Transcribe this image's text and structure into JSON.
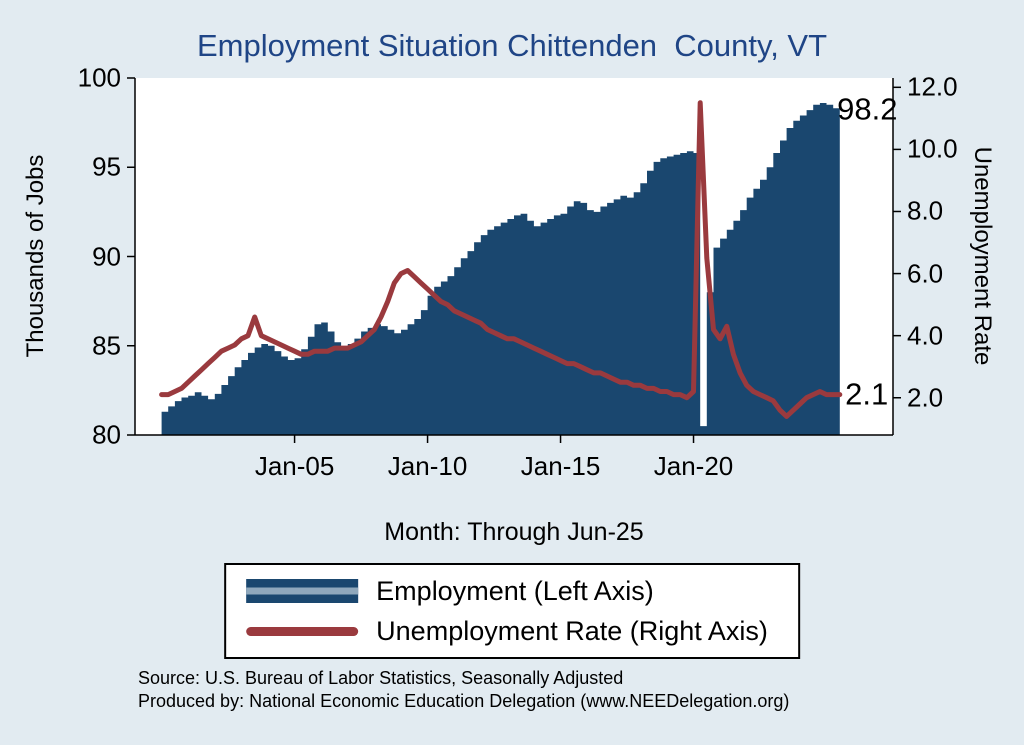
{
  "title": "Employment Situation Chittenden  County, VT",
  "axes": {
    "left_title": "Thousands of Jobs",
    "right_title": "Unemployment Rate",
    "x_title": "Month: Through Jun-25"
  },
  "legend": {
    "items": [
      {
        "label": "Employment (Left Axis)",
        "swatch": "area"
      },
      {
        "label": "Unemployment Rate (Right Axis)",
        "swatch": "line"
      }
    ]
  },
  "source_line1": "Source: U.S. Bureau of Labor Statistics, Seasonally Adjusted",
  "source_line2": "Produced by: National Economic Education Delegation (www.NEEDelegation.org)",
  "colors": {
    "background": "#e2ebf1",
    "title": "#1f4586",
    "area": "#1a476f",
    "line": "#9a3a3e",
    "legend_stripe": "#8fa8bc",
    "axis": "#000000"
  },
  "chart_data": {
    "type": "area",
    "title": "Employment Situation Chittenden  County, VT",
    "xlabel": "Month: Through Jun-25",
    "left_ylabel": "Thousands of Jobs",
    "right_ylabel": "Unemployment Rate",
    "xlim": [
      1999.0,
      2027.5
    ],
    "left_ylim": [
      80,
      100
    ],
    "right_ylim": [
      0.8,
      12.3
    ],
    "grid": false,
    "legend_position": "bottom",
    "left_ticks": [
      {
        "value": 100,
        "label": "100"
      },
      {
        "value": 95,
        "label": "95"
      },
      {
        "value": 90,
        "label": "90"
      },
      {
        "value": 85,
        "label": "85"
      },
      {
        "value": 80,
        "label": "80"
      }
    ],
    "right_ticks": [
      {
        "value": 12,
        "label": "12.0"
      },
      {
        "value": 10,
        "label": "10.0"
      },
      {
        "value": 8,
        "label": "8.0"
      },
      {
        "value": 6,
        "label": "6.0"
      },
      {
        "value": 4,
        "label": "4.0"
      },
      {
        "value": 2,
        "label": "2.0"
      }
    ],
    "x_ticks": [
      {
        "value": 2005,
        "label": "Jan-05"
      },
      {
        "value": 2010,
        "label": "Jan-10"
      },
      {
        "value": 2015,
        "label": "Jan-15"
      },
      {
        "value": 2020,
        "label": "Jan-20"
      }
    ],
    "x": [
      2000,
      2000.25,
      2000.5,
      2000.75,
      2001,
      2001.25,
      2001.5,
      2001.75,
      2002,
      2002.25,
      2002.5,
      2002.75,
      2003,
      2003.25,
      2003.5,
      2003.75,
      2004,
      2004.25,
      2004.5,
      2004.75,
      2005,
      2005.25,
      2005.5,
      2005.75,
      2006,
      2006.25,
      2006.5,
      2006.75,
      2007,
      2007.25,
      2007.5,
      2007.75,
      2008,
      2008.25,
      2008.5,
      2008.75,
      2009,
      2009.25,
      2009.5,
      2009.75,
      2010,
      2010.25,
      2010.5,
      2010.75,
      2011,
      2011.25,
      2011.5,
      2011.75,
      2012,
      2012.25,
      2012.5,
      2012.75,
      2013,
      2013.25,
      2013.5,
      2013.75,
      2014,
      2014.25,
      2014.5,
      2014.75,
      2015,
      2015.25,
      2015.5,
      2015.75,
      2016,
      2016.25,
      2016.5,
      2016.75,
      2017,
      2017.25,
      2017.5,
      2017.75,
      2018,
      2018.25,
      2018.5,
      2018.75,
      2019,
      2019.25,
      2019.5,
      2019.75,
      2020,
      2020.25,
      2020.5,
      2020.75,
      2021,
      2021.25,
      2021.5,
      2021.75,
      2022,
      2022.25,
      2022.5,
      2022.75,
      2023,
      2023.25,
      2023.5,
      2023.75,
      2024,
      2024.25,
      2024.5,
      2024.75,
      2025,
      2025.25,
      2025.5
    ],
    "series": [
      {
        "name": "Employment (Left Axis)",
        "axis": "left",
        "style": "step-area",
        "color": "#1a476f",
        "values": [
          81.3,
          81.6,
          81.9,
          82.1,
          82.2,
          82.4,
          82.2,
          82.0,
          82.3,
          82.8,
          83.3,
          83.8,
          84.2,
          84.6,
          84.9,
          85.1,
          85.0,
          84.7,
          84.4,
          84.2,
          84.3,
          84.8,
          85.5,
          86.2,
          86.3,
          85.8,
          85.2,
          84.9,
          85.1,
          85.4,
          85.8,
          86.0,
          86.2,
          86.1,
          85.9,
          85.7,
          85.9,
          86.2,
          86.5,
          87.0,
          87.8,
          88.3,
          88.6,
          88.9,
          89.4,
          89.9,
          90.3,
          90.8,
          91.2,
          91.5,
          91.7,
          91.9,
          92.1,
          92.3,
          92.4,
          92.0,
          91.7,
          91.9,
          92.1,
          92.3,
          92.4,
          92.8,
          93.1,
          93.0,
          92.6,
          92.5,
          92.8,
          93.0,
          93.2,
          93.4,
          93.3,
          93.6,
          94.1,
          94.8,
          95.3,
          95.5,
          95.6,
          95.7,
          95.8,
          95.9,
          95.8,
          80.5,
          88.0,
          90.5,
          91.0,
          91.5,
          92.0,
          92.6,
          93.3,
          93.8,
          94.3,
          95.0,
          95.8,
          96.5,
          97.2,
          97.6,
          97.9,
          98.2,
          98.5,
          98.6,
          98.5,
          98.3,
          98.2
        ]
      },
      {
        "name": "Unemployment Rate (Right Axis)",
        "axis": "right",
        "style": "line",
        "color": "#9a3a3e",
        "values": [
          2.1,
          2.1,
          2.2,
          2.3,
          2.5,
          2.7,
          2.9,
          3.1,
          3.3,
          3.5,
          3.6,
          3.7,
          3.9,
          4.0,
          4.6,
          4.0,
          3.9,
          3.8,
          3.7,
          3.6,
          3.5,
          3.4,
          3.4,
          3.5,
          3.5,
          3.5,
          3.6,
          3.6,
          3.6,
          3.7,
          3.8,
          4.0,
          4.2,
          4.6,
          5.1,
          5.7,
          6.0,
          6.1,
          5.9,
          5.7,
          5.5,
          5.3,
          5.1,
          5.0,
          4.8,
          4.7,
          4.6,
          4.5,
          4.4,
          4.2,
          4.1,
          4.0,
          3.9,
          3.9,
          3.8,
          3.7,
          3.6,
          3.5,
          3.4,
          3.3,
          3.2,
          3.1,
          3.1,
          3.0,
          2.9,
          2.8,
          2.8,
          2.7,
          2.6,
          2.5,
          2.5,
          2.4,
          2.4,
          2.3,
          2.3,
          2.2,
          2.2,
          2.1,
          2.1,
          2.0,
          2.2,
          11.5,
          6.5,
          4.2,
          3.9,
          4.3,
          3.4,
          2.8,
          2.4,
          2.2,
          2.1,
          2.0,
          1.9,
          1.6,
          1.4,
          1.6,
          1.8,
          2.0,
          2.1,
          2.2,
          2.1,
          2.1,
          2.1
        ]
      }
    ],
    "annotations": [
      {
        "text": "98.2",
        "x": 2025.4,
        "y": 98.2,
        "axis": "left"
      },
      {
        "text": "2.1",
        "x": 2025.7,
        "y": 2.1,
        "axis": "right"
      }
    ]
  }
}
